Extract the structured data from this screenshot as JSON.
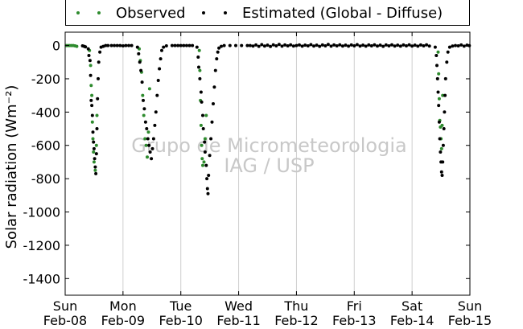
{
  "chart_data": {
    "type": "scatter",
    "title": "",
    "xlabel": "",
    "ylabel": "Solar radiation (Wm⁻²)",
    "ylim": [
      -1500,
      80
    ],
    "xlim": [
      0,
      7
    ],
    "x_ticks": [
      {
        "x": 0,
        "line1": "Sun",
        "line2": "Feb-08"
      },
      {
        "x": 1,
        "line1": "Mon",
        "line2": "Feb-09"
      },
      {
        "x": 2,
        "line1": "Tue",
        "line2": "Feb-10"
      },
      {
        "x": 3,
        "line1": "Wed",
        "line2": "Feb-11"
      },
      {
        "x": 4,
        "line1": "Thu",
        "line2": "Feb-12"
      },
      {
        "x": 5,
        "line1": "Fri",
        "line2": "Feb-13"
      },
      {
        "x": 6,
        "line1": "Sat",
        "line2": "Feb-14"
      },
      {
        "x": 7,
        "line1": "Sun",
        "line2": "Feb-15"
      }
    ],
    "y_ticks": [
      0,
      -200,
      -400,
      -600,
      -800,
      -1000,
      -1200,
      -1400
    ],
    "grid": "vertical",
    "legend_position": "top",
    "watermark": [
      "Grupo de Micrometeorologia",
      "IAG / USP"
    ],
    "series": [
      {
        "name": "Observed",
        "color": "#2e8b2e",
        "points": [
          [
            0.02,
            0
          ],
          [
            0.05,
            0
          ],
          [
            0.08,
            0
          ],
          [
            0.11,
            0
          ],
          [
            0.14,
            0
          ],
          [
            0.17,
            -2
          ],
          [
            0.2,
            -5
          ],
          [
            0.42,
            -30
          ],
          [
            0.44,
            -120
          ],
          [
            0.45,
            -240
          ],
          [
            0.46,
            -300
          ],
          [
            0.47,
            -460
          ],
          [
            0.48,
            -560
          ],
          [
            0.49,
            -640
          ],
          [
            0.5,
            -700
          ],
          [
            0.52,
            -750
          ],
          [
            0.54,
            -600
          ],
          [
            0.55,
            -420
          ],
          [
            1.28,
            -20
          ],
          [
            1.3,
            -90
          ],
          [
            1.32,
            -160
          ],
          [
            1.34,
            -300
          ],
          [
            1.36,
            -420
          ],
          [
            1.38,
            -560
          ],
          [
            1.4,
            -600
          ],
          [
            1.42,
            -670
          ],
          [
            1.44,
            -520
          ],
          [
            1.46,
            -260
          ],
          [
            2.32,
            -30
          ],
          [
            2.33,
            -150
          ],
          [
            2.34,
            -330
          ],
          [
            2.35,
            -480
          ],
          [
            2.36,
            -600
          ],
          [
            2.37,
            -680
          ],
          [
            2.38,
            -720
          ],
          [
            2.4,
            -700
          ],
          [
            2.42,
            -560
          ],
          [
            2.44,
            -420
          ],
          [
            6.45,
            -40
          ],
          [
            6.46,
            -170
          ],
          [
            6.47,
            -320
          ],
          [
            6.48,
            -450
          ],
          [
            6.49,
            -490
          ],
          [
            6.5,
            -560
          ],
          [
            6.51,
            -620
          ],
          [
            6.52,
            -480
          ],
          [
            6.53,
            -300
          ]
        ]
      },
      {
        "name": "Estimated (Global - Diffuse)",
        "color": "#000000",
        "points": [
          [
            0.3,
            -2
          ],
          [
            0.33,
            -5
          ],
          [
            0.35,
            -8
          ],
          [
            0.4,
            -20
          ],
          [
            0.41,
            -60
          ],
          [
            0.43,
            -90
          ],
          [
            0.44,
            -180
          ],
          [
            0.45,
            -330
          ],
          [
            0.46,
            -360
          ],
          [
            0.47,
            -420
          ],
          [
            0.48,
            -520
          ],
          [
            0.49,
            -580
          ],
          [
            0.5,
            -620
          ],
          [
            0.51,
            -680
          ],
          [
            0.52,
            -730
          ],
          [
            0.53,
            -770
          ],
          [
            0.54,
            -650
          ],
          [
            0.55,
            -500
          ],
          [
            0.56,
            -320
          ],
          [
            0.57,
            -200
          ],
          [
            0.58,
            -100
          ],
          [
            0.6,
            -40
          ],
          [
            0.62,
            -10
          ],
          [
            0.66,
            -5
          ],
          [
            0.7,
            0
          ],
          [
            0.74,
            0
          ],
          [
            0.8,
            0
          ],
          [
            0.85,
            0
          ],
          [
            0.9,
            0
          ],
          [
            0.95,
            0
          ],
          [
            1.0,
            -2
          ],
          [
            1.05,
            0
          ],
          [
            1.1,
            0
          ],
          [
            1.15,
            0
          ],
          [
            1.25,
            -10
          ],
          [
            1.27,
            -50
          ],
          [
            1.29,
            -100
          ],
          [
            1.31,
            -150
          ],
          [
            1.33,
            -220
          ],
          [
            1.35,
            -330
          ],
          [
            1.37,
            -380
          ],
          [
            1.39,
            -460
          ],
          [
            1.41,
            -500
          ],
          [
            1.43,
            -560
          ],
          [
            1.45,
            -600
          ],
          [
            1.47,
            -640
          ],
          [
            1.49,
            -680
          ],
          [
            1.51,
            -620
          ],
          [
            1.53,
            -560
          ],
          [
            1.55,
            -480
          ],
          [
            1.57,
            -400
          ],
          [
            1.59,
            -300
          ],
          [
            1.61,
            -210
          ],
          [
            1.63,
            -140
          ],
          [
            1.65,
            -80
          ],
          [
            1.67,
            -30
          ],
          [
            1.7,
            -10
          ],
          [
            1.75,
            -2
          ],
          [
            1.85,
            0
          ],
          [
            1.9,
            0
          ],
          [
            1.95,
            0
          ],
          [
            2.0,
            0
          ],
          [
            2.05,
            0
          ],
          [
            2.1,
            0
          ],
          [
            2.15,
            0
          ],
          [
            2.2,
            0
          ],
          [
            2.28,
            -10
          ],
          [
            2.3,
            -70
          ],
          [
            2.31,
            -130
          ],
          [
            2.33,
            -200
          ],
          [
            2.35,
            -280
          ],
          [
            2.36,
            -340
          ],
          [
            2.38,
            -420
          ],
          [
            2.39,
            -500
          ],
          [
            2.41,
            -580
          ],
          [
            2.42,
            -640
          ],
          [
            2.44,
            -720
          ],
          [
            2.45,
            -800
          ],
          [
            2.46,
            -860
          ],
          [
            2.47,
            -890
          ],
          [
            2.48,
            -780
          ],
          [
            2.5,
            -660
          ],
          [
            2.52,
            -560
          ],
          [
            2.54,
            -460
          ],
          [
            2.56,
            -350
          ],
          [
            2.58,
            -250
          ],
          [
            2.6,
            -150
          ],
          [
            2.62,
            -80
          ],
          [
            2.64,
            -40
          ],
          [
            2.66,
            -15
          ],
          [
            2.7,
            -5
          ],
          [
            2.75,
            0
          ],
          [
            2.85,
            0
          ],
          [
            2.95,
            0
          ],
          [
            3.05,
            0
          ],
          [
            3.15,
            0
          ],
          [
            3.2,
            0
          ],
          [
            3.25,
            -3
          ],
          [
            3.3,
            3
          ],
          [
            3.35,
            -5
          ],
          [
            3.4,
            5
          ],
          [
            3.45,
            -3
          ],
          [
            3.5,
            2
          ],
          [
            3.55,
            -6
          ],
          [
            3.6,
            4
          ],
          [
            3.65,
            -2
          ],
          [
            3.7,
            6
          ],
          [
            3.75,
            -4
          ],
          [
            3.8,
            3
          ],
          [
            3.85,
            -2
          ],
          [
            3.9,
            4
          ],
          [
            3.95,
            -3
          ],
          [
            4.0,
            0
          ],
          [
            4.05,
            3
          ],
          [
            4.1,
            -4
          ],
          [
            4.15,
            2
          ],
          [
            4.2,
            -2
          ],
          [
            4.25,
            5
          ],
          [
            4.3,
            -3
          ],
          [
            4.35,
            2
          ],
          [
            4.4,
            -5
          ],
          [
            4.45,
            3
          ],
          [
            4.5,
            -2
          ],
          [
            4.55,
            6
          ],
          [
            4.6,
            -4
          ],
          [
            4.65,
            3
          ],
          [
            4.7,
            -2
          ],
          [
            4.75,
            4
          ],
          [
            4.8,
            -3
          ],
          [
            4.85,
            2
          ],
          [
            4.9,
            -4
          ],
          [
            4.95,
            3
          ],
          [
            5.0,
            -2
          ],
          [
            5.05,
            5
          ],
          [
            5.1,
            -3
          ],
          [
            5.15,
            2
          ],
          [
            5.2,
            -4
          ],
          [
            5.25,
            3
          ],
          [
            5.3,
            -2
          ],
          [
            5.35,
            4
          ],
          [
            5.4,
            -3
          ],
          [
            5.45,
            2
          ],
          [
            5.5,
            -5
          ],
          [
            5.55,
            3
          ],
          [
            5.6,
            -2
          ],
          [
            5.65,
            4
          ],
          [
            5.7,
            -3
          ],
          [
            5.75,
            2
          ],
          [
            5.8,
            -4
          ],
          [
            5.85,
            3
          ],
          [
            5.9,
            -2
          ],
          [
            5.95,
            4
          ],
          [
            6.0,
            -3
          ],
          [
            6.05,
            2
          ],
          [
            6.1,
            -4
          ],
          [
            6.15,
            3
          ],
          [
            6.2,
            -2
          ],
          [
            6.25,
            4
          ],
          [
            6.3,
            -3
          ],
          [
            6.4,
            -10
          ],
          [
            6.42,
            -60
          ],
          [
            6.43,
            -120
          ],
          [
            6.44,
            -200
          ],
          [
            6.45,
            -280
          ],
          [
            6.46,
            -360
          ],
          [
            6.47,
            -460
          ],
          [
            6.48,
            -560
          ],
          [
            6.49,
            -640
          ],
          [
            6.5,
            -700
          ],
          [
            6.51,
            -760
          ],
          [
            6.52,
            -780
          ],
          [
            6.53,
            -700
          ],
          [
            6.54,
            -600
          ],
          [
            6.55,
            -500
          ],
          [
            6.56,
            -400
          ],
          [
            6.57,
            -300
          ],
          [
            6.58,
            -200
          ],
          [
            6.6,
            -100
          ],
          [
            6.62,
            -40
          ],
          [
            6.65,
            -10
          ],
          [
            6.7,
            -3
          ],
          [
            6.75,
            0
          ],
          [
            6.8,
            -2
          ],
          [
            6.85,
            3
          ],
          [
            6.9,
            -4
          ],
          [
            6.95,
            2
          ],
          [
            6.99,
            -1
          ]
        ]
      }
    ]
  }
}
